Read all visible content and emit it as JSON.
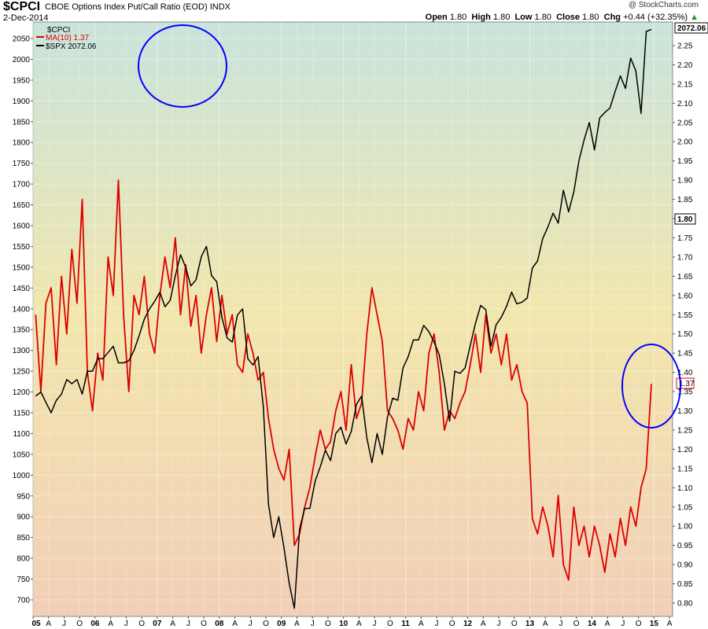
{
  "header": {
    "symbol": "$CPCI",
    "name": "CBOE Options Index Put/Call Ratio (EOD)",
    "exchange": "INDX",
    "date": "2-Dec-2014",
    "brand": "@ StockCharts.com",
    "open_label": "Open",
    "open": "1.80",
    "high_label": "High",
    "high": "1.80",
    "low_label": "Low",
    "low": "1.80",
    "close_label": "Close",
    "close": "1.80",
    "chg_label": "Chg",
    "chg": "+0.44 (+32.35%)",
    "chg_arrow": "▲"
  },
  "legend": {
    "title": "$CPCI",
    "ma_label": "MA(10) 1.37",
    "spx_label": "$SPX 2072.06"
  },
  "badges": {
    "spx_last": "2072.06",
    "cpci_last": "1.80",
    "ma_last": "1.37"
  },
  "colors": {
    "ma_line": "#dd0000",
    "spx_line": "#000000",
    "circle": "#0000ff",
    "bg_top": "#c9e4dc",
    "bg_mid": "#f2e6ad",
    "bg_bottom": "#f2cfb8"
  },
  "chart_data": {
    "type": "line",
    "x_range": [
      "2005-01",
      "2015-04"
    ],
    "x_ticks": [
      "05",
      "A",
      "J",
      "O",
      "06",
      "A",
      "J",
      "O",
      "07",
      "A",
      "J",
      "O",
      "08",
      "A",
      "J",
      "O",
      "09",
      "A",
      "J",
      "O",
      "10",
      "A",
      "J",
      "O",
      "11",
      "A",
      "J",
      "O",
      "12",
      "A",
      "J",
      "O",
      "13",
      "A",
      "J",
      "O",
      "14",
      "A",
      "J",
      "O",
      "15",
      "A"
    ],
    "left_axis": {
      "label": "$SPX",
      "ylim": [
        670,
        2080
      ],
      "ticks": [
        700,
        750,
        800,
        850,
        900,
        950,
        1000,
        1050,
        1100,
        1150,
        1200,
        1250,
        1300,
        1350,
        1400,
        1450,
        1500,
        1550,
        1600,
        1650,
        1700,
        1750,
        1800,
        1850,
        1900,
        1950,
        2000,
        2050
      ]
    },
    "right_axis": {
      "label": "$CPCI",
      "ylim": [
        0.775,
        2.28
      ],
      "ticks": [
        "0.80",
        "0.85",
        "0.90",
        "0.95",
        "1.00",
        "1.05",
        "1.10",
        "1.15",
        "1.20",
        "1.25",
        "1.30",
        "1.35",
        "1.40",
        "1.45",
        "1.50",
        "1.55",
        "1.60",
        "1.65",
        "1.70",
        "1.75",
        "1.80",
        "1.85",
        "1.90",
        "1.95",
        "2.00",
        "2.05",
        "2.10",
        "2.15",
        "2.20",
        "2.25"
      ]
    },
    "series": [
      {
        "name": "$SPX",
        "axis": "left",
        "color": "#000000",
        "points": [
          [
            "2005-01",
            1190
          ],
          [
            "2005-02",
            1200
          ],
          [
            "2005-03",
            1175
          ],
          [
            "2005-04",
            1150
          ],
          [
            "2005-05",
            1180
          ],
          [
            "2005-06",
            1195
          ],
          [
            "2005-07",
            1230
          ],
          [
            "2005-08",
            1220
          ],
          [
            "2005-09",
            1230
          ],
          [
            "2005-10",
            1195
          ],
          [
            "2005-11",
            1250
          ],
          [
            "2005-12",
            1250
          ],
          [
            "2006-01",
            1280
          ],
          [
            "2006-02",
            1280
          ],
          [
            "2006-03",
            1295
          ],
          [
            "2006-04",
            1310
          ],
          [
            "2006-05",
            1270
          ],
          [
            "2006-06",
            1270
          ],
          [
            "2006-07",
            1275
          ],
          [
            "2006-08",
            1300
          ],
          [
            "2006-09",
            1335
          ],
          [
            "2006-10",
            1375
          ],
          [
            "2006-11",
            1400
          ],
          [
            "2006-12",
            1418
          ],
          [
            "2007-01",
            1440
          ],
          [
            "2007-02",
            1405
          ],
          [
            "2007-03",
            1420
          ],
          [
            "2007-04",
            1480
          ],
          [
            "2007-05",
            1530
          ],
          [
            "2007-06",
            1500
          ],
          [
            "2007-07",
            1455
          ],
          [
            "2007-08",
            1470
          ],
          [
            "2007-09",
            1525
          ],
          [
            "2007-10",
            1550
          ],
          [
            "2007-11",
            1480
          ],
          [
            "2007-12",
            1465
          ],
          [
            "2008-01",
            1380
          ],
          [
            "2008-02",
            1330
          ],
          [
            "2008-03",
            1320
          ],
          [
            "2008-04",
            1385
          ],
          [
            "2008-05",
            1400
          ],
          [
            "2008-06",
            1280
          ],
          [
            "2008-07",
            1265
          ],
          [
            "2008-08",
            1285
          ],
          [
            "2008-09",
            1165
          ],
          [
            "2008-10",
            930
          ],
          [
            "2008-11",
            850
          ],
          [
            "2008-12",
            900
          ],
          [
            "2009-01",
            825
          ],
          [
            "2009-02",
            740
          ],
          [
            "2009-03",
            680
          ],
          [
            "2009-04",
            870
          ],
          [
            "2009-05",
            920
          ],
          [
            "2009-06",
            920
          ],
          [
            "2009-07",
            985
          ],
          [
            "2009-08",
            1020
          ],
          [
            "2009-09",
            1060
          ],
          [
            "2009-10",
            1035
          ],
          [
            "2009-11",
            1100
          ],
          [
            "2009-12",
            1115
          ],
          [
            "2010-01",
            1075
          ],
          [
            "2010-02",
            1105
          ],
          [
            "2010-03",
            1170
          ],
          [
            "2010-04",
            1190
          ],
          [
            "2010-05",
            1090
          ],
          [
            "2010-06",
            1030
          ],
          [
            "2010-07",
            1100
          ],
          [
            "2010-08",
            1050
          ],
          [
            "2010-09",
            1140
          ],
          [
            "2010-10",
            1185
          ],
          [
            "2010-11",
            1180
          ],
          [
            "2010-12",
            1258
          ],
          [
            "2011-01",
            1285
          ],
          [
            "2011-02",
            1325
          ],
          [
            "2011-03",
            1325
          ],
          [
            "2011-04",
            1360
          ],
          [
            "2011-05",
            1345
          ],
          [
            "2011-06",
            1320
          ],
          [
            "2011-07",
            1290
          ],
          [
            "2011-08",
            1220
          ],
          [
            "2011-09",
            1130
          ],
          [
            "2011-10",
            1250
          ],
          [
            "2011-11",
            1245
          ],
          [
            "2011-12",
            1258
          ],
          [
            "2012-01",
            1312
          ],
          [
            "2012-02",
            1365
          ],
          [
            "2012-03",
            1408
          ],
          [
            "2012-04",
            1398
          ],
          [
            "2012-05",
            1310
          ],
          [
            "2012-06",
            1362
          ],
          [
            "2012-07",
            1380
          ],
          [
            "2012-08",
            1406
          ],
          [
            "2012-09",
            1440
          ],
          [
            "2012-10",
            1412
          ],
          [
            "2012-11",
            1416
          ],
          [
            "2012-12",
            1426
          ],
          [
            "2013-01",
            1498
          ],
          [
            "2013-02",
            1515
          ],
          [
            "2013-03",
            1569
          ],
          [
            "2013-04",
            1597
          ],
          [
            "2013-05",
            1630
          ],
          [
            "2013-06",
            1606
          ],
          [
            "2013-07",
            1685
          ],
          [
            "2013-08",
            1633
          ],
          [
            "2013-09",
            1681
          ],
          [
            "2013-10",
            1756
          ],
          [
            "2013-11",
            1806
          ],
          [
            "2013-12",
            1848
          ],
          [
            "2014-01",
            1782
          ],
          [
            "2014-02",
            1859
          ],
          [
            "2014-03",
            1872
          ],
          [
            "2014-04",
            1883
          ],
          [
            "2014-05",
            1923
          ],
          [
            "2014-06",
            1960
          ],
          [
            "2014-07",
            1930
          ],
          [
            "2014-08",
            2003
          ],
          [
            "2014-09",
            1972
          ],
          [
            "2014-10",
            1870
          ],
          [
            "2014-11",
            2067
          ],
          [
            "2014-12",
            2072
          ]
        ]
      },
      {
        "name": "MA(10)",
        "axis": "right",
        "color": "#dd0000",
        "points": [
          [
            "2005-01",
            1.55
          ],
          [
            "2005-02",
            1.35
          ],
          [
            "2005-03",
            1.58
          ],
          [
            "2005-04",
            1.62
          ],
          [
            "2005-05",
            1.42
          ],
          [
            "2005-06",
            1.65
          ],
          [
            "2005-07",
            1.5
          ],
          [
            "2005-08",
            1.72
          ],
          [
            "2005-09",
            1.58
          ],
          [
            "2005-10",
            1.85
          ],
          [
            "2005-11",
            1.4
          ],
          [
            "2005-12",
            1.3
          ],
          [
            "2006-01",
            1.45
          ],
          [
            "2006-02",
            1.38
          ],
          [
            "2006-03",
            1.7
          ],
          [
            "2006-04",
            1.6
          ],
          [
            "2006-05",
            1.9
          ],
          [
            "2006-06",
            1.55
          ],
          [
            "2006-07",
            1.35
          ],
          [
            "2006-08",
            1.6
          ],
          [
            "2006-09",
            1.55
          ],
          [
            "2006-10",
            1.65
          ],
          [
            "2006-11",
            1.5
          ],
          [
            "2006-12",
            1.45
          ],
          [
            "2007-01",
            1.6
          ],
          [
            "2007-02",
            1.7
          ],
          [
            "2007-03",
            1.62
          ],
          [
            "2007-04",
            1.75
          ],
          [
            "2007-05",
            1.55
          ],
          [
            "2007-06",
            1.68
          ],
          [
            "2007-07",
            1.52
          ],
          [
            "2007-08",
            1.6
          ],
          [
            "2007-09",
            1.45
          ],
          [
            "2007-10",
            1.55
          ],
          [
            "2007-11",
            1.62
          ],
          [
            "2007-12",
            1.48
          ],
          [
            "2008-01",
            1.6
          ],
          [
            "2008-02",
            1.5
          ],
          [
            "2008-03",
            1.55
          ],
          [
            "2008-04",
            1.42
          ],
          [
            "2008-05",
            1.4
          ],
          [
            "2008-06",
            1.5
          ],
          [
            "2008-07",
            1.45
          ],
          [
            "2008-08",
            1.38
          ],
          [
            "2008-09",
            1.4
          ],
          [
            "2008-10",
            1.28
          ],
          [
            "2008-11",
            1.2
          ],
          [
            "2008-12",
            1.15
          ],
          [
            "2009-01",
            1.12
          ],
          [
            "2009-02",
            1.2
          ],
          [
            "2009-03",
            0.95
          ],
          [
            "2009-04",
            0.98
          ],
          [
            "2009-05",
            1.05
          ],
          [
            "2009-06",
            1.1
          ],
          [
            "2009-07",
            1.18
          ],
          [
            "2009-08",
            1.25
          ],
          [
            "2009-09",
            1.2
          ],
          [
            "2009-10",
            1.22
          ],
          [
            "2009-11",
            1.3
          ],
          [
            "2009-12",
            1.35
          ],
          [
            "2010-01",
            1.25
          ],
          [
            "2010-02",
            1.42
          ],
          [
            "2010-03",
            1.28
          ],
          [
            "2010-04",
            1.32
          ],
          [
            "2010-05",
            1.5
          ],
          [
            "2010-06",
            1.62
          ],
          [
            "2010-07",
            1.55
          ],
          [
            "2010-08",
            1.48
          ],
          [
            "2010-09",
            1.3
          ],
          [
            "2010-10",
            1.28
          ],
          [
            "2010-11",
            1.25
          ],
          [
            "2010-12",
            1.2
          ],
          [
            "2011-01",
            1.28
          ],
          [
            "2011-02",
            1.25
          ],
          [
            "2011-03",
            1.35
          ],
          [
            "2011-04",
            1.3
          ],
          [
            "2011-05",
            1.45
          ],
          [
            "2011-06",
            1.5
          ],
          [
            "2011-07",
            1.4
          ],
          [
            "2011-08",
            1.25
          ],
          [
            "2011-09",
            1.3
          ],
          [
            "2011-10",
            1.28
          ],
          [
            "2011-11",
            1.32
          ],
          [
            "2011-12",
            1.35
          ],
          [
            "2012-01",
            1.42
          ],
          [
            "2012-02",
            1.5
          ],
          [
            "2012-03",
            1.4
          ],
          [
            "2012-04",
            1.55
          ],
          [
            "2012-05",
            1.45
          ],
          [
            "2012-06",
            1.5
          ],
          [
            "2012-07",
            1.42
          ],
          [
            "2012-08",
            1.5
          ],
          [
            "2012-09",
            1.38
          ],
          [
            "2012-10",
            1.42
          ],
          [
            "2012-11",
            1.35
          ],
          [
            "2012-12",
            1.32
          ],
          [
            "2013-01",
            1.02
          ],
          [
            "2013-02",
            0.98
          ],
          [
            "2013-03",
            1.05
          ],
          [
            "2013-04",
            1.0
          ],
          [
            "2013-05",
            0.92
          ],
          [
            "2013-06",
            1.08
          ],
          [
            "2013-07",
            0.9
          ],
          [
            "2013-08",
            0.86
          ],
          [
            "2013-09",
            1.05
          ],
          [
            "2013-10",
            0.95
          ],
          [
            "2013-11",
            1.0
          ],
          [
            "2013-12",
            0.92
          ],
          [
            "2014-01",
            1.0
          ],
          [
            "2014-02",
            0.95
          ],
          [
            "2014-03",
            0.88
          ],
          [
            "2014-04",
            0.98
          ],
          [
            "2014-05",
            0.92
          ],
          [
            "2014-06",
            1.02
          ],
          [
            "2014-07",
            0.95
          ],
          [
            "2014-08",
            1.05
          ],
          [
            "2014-09",
            1.0
          ],
          [
            "2014-10",
            1.1
          ],
          [
            "2014-11",
            1.15
          ],
          [
            "2014-12",
            1.37
          ]
        ]
      }
    ]
  }
}
